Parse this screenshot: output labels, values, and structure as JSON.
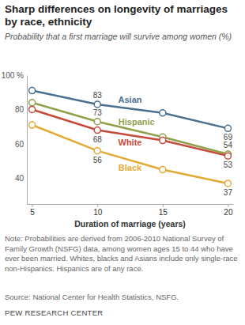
{
  "chart_data": {
    "type": "line",
    "title": "Sharp differences on longevity of marriages by race, ethnicity",
    "subtitle": "Probability that a first marriage will survive among women (%)",
    "x_label": "Duration of marriage (years)",
    "x": [
      5,
      10,
      15,
      20
    ],
    "xlim": [
      4.6,
      20.4
    ],
    "xticks": [
      5,
      10,
      15,
      20
    ],
    "ylim": [
      25,
      100
    ],
    "yticks": [
      40,
      60,
      80,
      {
        "value": 100,
        "label": "100 %"
      }
    ],
    "grid": false,
    "marker": "circle",
    "data_labels": true,
    "series": [
      {
        "name": "Asian",
        "color": "#4a7090",
        "values": [
          91,
          83,
          78,
          69
        ],
        "value_labels": [
          null,
          "83",
          null,
          "69"
        ]
      },
      {
        "name": "Hispanic",
        "color": "#8fa14b",
        "values": [
          84,
          73,
          64,
          54
        ],
        "value_labels": [
          null,
          "73",
          null,
          "54"
        ]
      },
      {
        "name": "White",
        "color": "#c64a3a",
        "values": [
          80,
          68,
          62,
          53
        ],
        "value_labels": [
          null,
          "68",
          null,
          "53"
        ]
      },
      {
        "name": "Black",
        "color": "#e2aa35",
        "values": [
          71,
          56,
          45,
          37
        ],
        "value_labels": [
          null,
          "56",
          null,
          "37"
        ]
      }
    ],
    "note": "Note: Probabilities are derived from 2006-2010 National Survey of Family Growth (NSFG) data, among women ages 15 to 44 who have ever been married. Whites, blacks and Asians include only single-race non-Hispanics. Hispanics are of any race.",
    "source": "Source: National Center for Health Statistics, NSFG.",
    "credit": "PEW RESEARCH CENTER"
  }
}
